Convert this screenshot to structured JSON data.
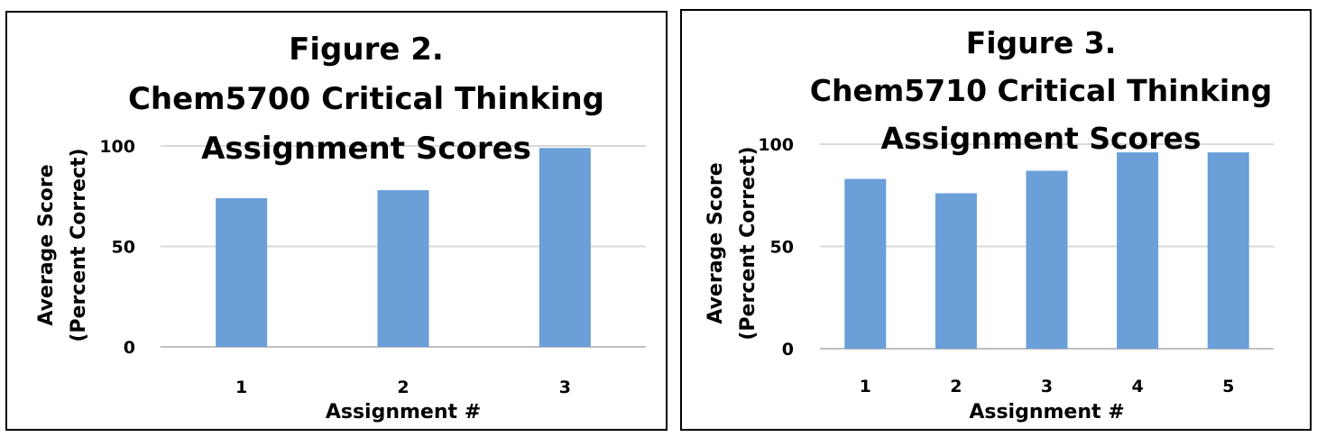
{
  "chart_data": [
    {
      "type": "bar",
      "title": [
        "Figure 2.",
        "Chem5700 Critical Thinking",
        "Assignment Scores"
      ],
      "xlabel": "Assignment #",
      "ylabel": [
        "Average Score",
        "(Percent Correct)"
      ],
      "categories": [
        "1",
        "2",
        "3"
      ],
      "values": [
        74,
        78,
        99
      ],
      "ylim": [
        0,
        100
      ],
      "yticks": [
        0,
        50,
        100
      ],
      "grid": true,
      "bar_color": "#6a9fd8"
    },
    {
      "type": "bar",
      "title": [
        "Figure 3.",
        "Chem5710 Critical Thinking",
        "Assignment Scores"
      ],
      "xlabel": "Assignment #",
      "ylabel": [
        "Average Score",
        "(Percent Correct)"
      ],
      "categories": [
        "1",
        "2",
        "3",
        "4",
        "5"
      ],
      "values": [
        83,
        76,
        87,
        96,
        96
      ],
      "ylim": [
        0,
        100
      ],
      "yticks": [
        0,
        50,
        100
      ],
      "grid": true,
      "bar_color": "#6a9fd8"
    }
  ]
}
